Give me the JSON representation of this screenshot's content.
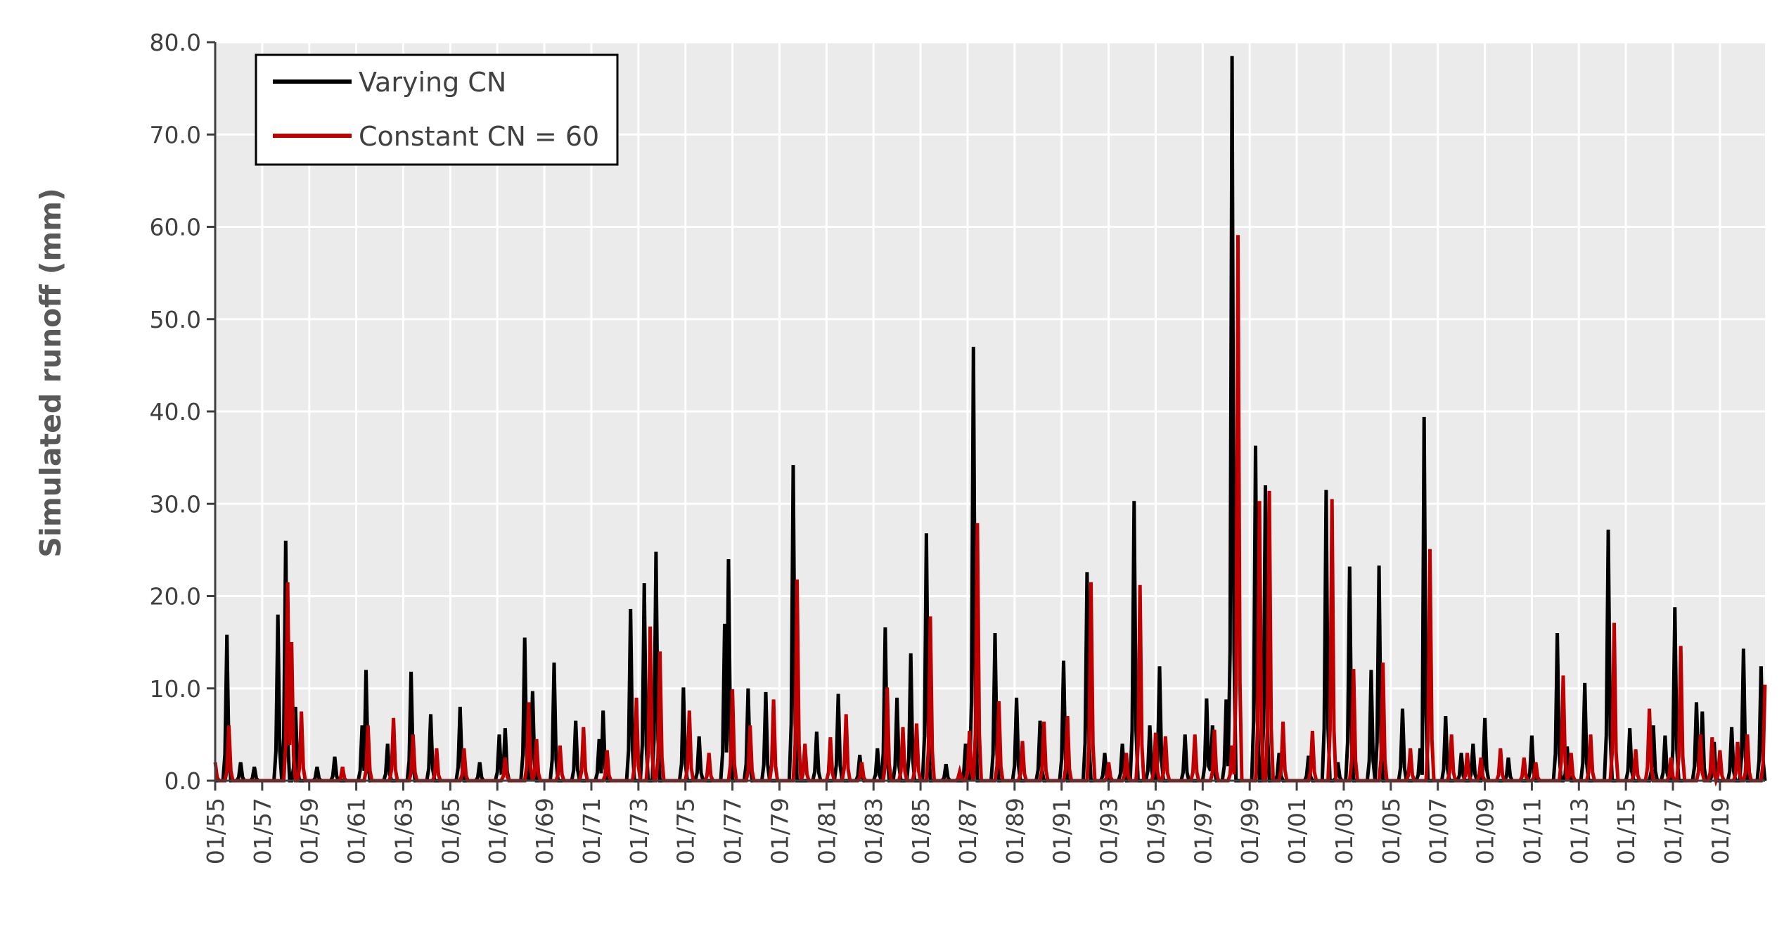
{
  "chart_data": {
    "type": "line",
    "title": "",
    "xlabel": "",
    "ylabel": "Simulated runoff (mm)",
    "ylim": [
      0,
      80
    ],
    "yticks": [
      "0.0",
      "10.0",
      "20.0",
      "30.0",
      "40.0",
      "50.0",
      "60.0",
      "70.0",
      "80.0"
    ],
    "xlim": [
      "1955-01",
      "2019-12"
    ],
    "xticks": [
      "01/55",
      "01/57",
      "01/59",
      "01/61",
      "01/63",
      "01/65",
      "01/67",
      "01/69",
      "01/71",
      "01/73",
      "01/75",
      "01/77",
      "01/79",
      "01/81",
      "01/83",
      "01/85",
      "01/87",
      "01/89",
      "01/91",
      "01/93",
      "01/95",
      "01/97",
      "01/99",
      "01/01",
      "01/03",
      "01/05",
      "01/07",
      "01/09",
      "01/11",
      "01/13",
      "01/15",
      "01/17",
      "01/19"
    ],
    "grid": true,
    "background": "#ebebeb",
    "legend_position": "top-left",
    "series": [
      {
        "name": "Varying CN",
        "color": "#000000",
        "peaks": [
          [
            "1955-07",
            15.8
          ],
          [
            "1956-02",
            2.0
          ],
          [
            "1956-09",
            1.5
          ],
          [
            "1957-09",
            18.0
          ],
          [
            "1958-01",
            26.0
          ],
          [
            "1958-06",
            8.0
          ],
          [
            "1959-05",
            1.5
          ],
          [
            "1960-02",
            2.6
          ],
          [
            "1961-04",
            6.0
          ],
          [
            "1961-06",
            12.0
          ],
          [
            "1962-05",
            4.0
          ],
          [
            "1963-05",
            11.8
          ],
          [
            "1964-03",
            7.2
          ],
          [
            "1965-06",
            8.0
          ],
          [
            "1966-04",
            2.0
          ],
          [
            "1967-02",
            5.0
          ],
          [
            "1967-05",
            5.7
          ],
          [
            "1968-03",
            15.5
          ],
          [
            "1968-07",
            9.7
          ],
          [
            "1969-06",
            12.8
          ],
          [
            "1970-05",
            6.5
          ],
          [
            "1971-05",
            4.5
          ],
          [
            "1971-07",
            7.6
          ],
          [
            "1972-09",
            18.6
          ],
          [
            "1973-04",
            21.4
          ],
          [
            "1973-10",
            24.8
          ],
          [
            "1974-12",
            10.1
          ],
          [
            "1975-08",
            4.8
          ],
          [
            "1976-09",
            17.0
          ],
          [
            "1976-11",
            24.0
          ],
          [
            "1977-09",
            10.0
          ],
          [
            "1978-06",
            9.6
          ],
          [
            "1979-08",
            34.2
          ],
          [
            "1980-08",
            5.3
          ],
          [
            "1981-07",
            9.4
          ],
          [
            "1982-06",
            2.8
          ],
          [
            "1983-03",
            3.5
          ],
          [
            "1983-07",
            16.6
          ],
          [
            "1984-01",
            9.0
          ],
          [
            "1984-08",
            13.8
          ],
          [
            "1985-04",
            26.8
          ],
          [
            "1986-02",
            1.8
          ],
          [
            "1986-12",
            4.0
          ],
          [
            "1987-04",
            47.0
          ],
          [
            "1988-03",
            16.0
          ],
          [
            "1989-02",
            9.0
          ],
          [
            "1990-02",
            6.5
          ],
          [
            "1991-02",
            13.0
          ],
          [
            "1992-02",
            22.6
          ],
          [
            "1992-11",
            3.0
          ],
          [
            "1993-08",
            4.0
          ],
          [
            "1994-02",
            30.3
          ],
          [
            "1994-10",
            6.0
          ],
          [
            "1995-03",
            12.4
          ],
          [
            "1996-04",
            5.0
          ],
          [
            "1997-03",
            8.9
          ],
          [
            "1997-06",
            6.0
          ],
          [
            "1998-01",
            8.8
          ],
          [
            "1998-04",
            78.5
          ],
          [
            "1999-04",
            36.3
          ],
          [
            "1999-09",
            32.0
          ],
          [
            "2000-04",
            3.0
          ],
          [
            "2001-07",
            2.7
          ],
          [
            "2002-04",
            31.5
          ],
          [
            "2002-10",
            2.0
          ],
          [
            "2003-04",
            23.2
          ],
          [
            "2004-03",
            12.0
          ],
          [
            "2004-07",
            23.3
          ],
          [
            "2005-07",
            7.8
          ],
          [
            "2006-04",
            3.5
          ],
          [
            "2006-06",
            39.4
          ],
          [
            "2007-05",
            7.0
          ],
          [
            "2008-01",
            3.0
          ],
          [
            "2008-07",
            4.0
          ],
          [
            "2009-01",
            6.8
          ],
          [
            "2010-01",
            2.5
          ],
          [
            "2011-01",
            4.9
          ],
          [
            "2012-02",
            16.0
          ],
          [
            "2012-07",
            3.7
          ],
          [
            "2013-04",
            10.6
          ],
          [
            "2014-04",
            27.2
          ],
          [
            "2015-03",
            5.7
          ],
          [
            "2016-03",
            6.0
          ],
          [
            "2016-09",
            4.9
          ],
          [
            "2017-02",
            18.8
          ],
          [
            "2018-01",
            8.5
          ],
          [
            "2018-04",
            7.5
          ],
          [
            "2018-10",
            4.2
          ],
          [
            "2019-07",
            5.8
          ],
          [
            "2020-01",
            14.3
          ],
          [
            "2020-10",
            12.4
          ]
        ]
      },
      {
        "name": "Constant CN = 60",
        "color": "#c00000",
        "peaks": [
          [
            "1955-01",
            2.0
          ],
          [
            "1955-08",
            6.0
          ],
          [
            "1958-02",
            21.5
          ],
          [
            "1958-04",
            15.0
          ],
          [
            "1958-09",
            7.5
          ],
          [
            "1960-06",
            1.5
          ],
          [
            "1961-07",
            6.0
          ],
          [
            "1962-08",
            6.8
          ],
          [
            "1963-06",
            5.0
          ],
          [
            "1964-06",
            3.5
          ],
          [
            "1965-08",
            3.5
          ],
          [
            "1967-05",
            2.5
          ],
          [
            "1968-05",
            8.5
          ],
          [
            "1968-09",
            4.5
          ],
          [
            "1969-09",
            3.8
          ],
          [
            "1970-09",
            5.8
          ],
          [
            "1971-09",
            3.3
          ],
          [
            "1972-12",
            9.0
          ],
          [
            "1973-07",
            16.7
          ],
          [
            "1973-12",
            14.0
          ],
          [
            "1975-03",
            7.6
          ],
          [
            "1976-01",
            3.0
          ],
          [
            "1977-01",
            9.9
          ],
          [
            "1977-10",
            6.0
          ],
          [
            "1978-10",
            8.8
          ],
          [
            "1979-10",
            21.8
          ],
          [
            "1980-02",
            4.0
          ],
          [
            "1981-03",
            4.7
          ],
          [
            "1981-11",
            7.2
          ],
          [
            "1982-07",
            2.0
          ],
          [
            "1983-08",
            10.1
          ],
          [
            "1984-04",
            5.8
          ],
          [
            "1984-11",
            6.2
          ],
          [
            "1985-06",
            17.8
          ],
          [
            "1986-09",
            1.0
          ],
          [
            "1987-02",
            5.4
          ],
          [
            "1987-06",
            27.9
          ],
          [
            "1988-05",
            8.6
          ],
          [
            "1989-05",
            4.3
          ],
          [
            "1990-04",
            6.4
          ],
          [
            "1991-04",
            7.0
          ],
          [
            "1992-04",
            21.5
          ],
          [
            "1993-01",
            2.0
          ],
          [
            "1993-10",
            3.0
          ],
          [
            "1994-05",
            21.2
          ],
          [
            "1995-01",
            5.2
          ],
          [
            "1995-06",
            4.8
          ],
          [
            "1996-09",
            5.0
          ],
          [
            "1997-07",
            5.5
          ],
          [
            "1998-04",
            3.8
          ],
          [
            "1998-07",
            59.1
          ],
          [
            "1999-06",
            30.3
          ],
          [
            "1999-11",
            31.4
          ],
          [
            "2000-06",
            6.4
          ],
          [
            "2001-09",
            5.4
          ],
          [
            "2002-07",
            30.5
          ],
          [
            "2003-06",
            12.1
          ],
          [
            "2004-09",
            12.8
          ],
          [
            "2005-11",
            3.5
          ],
          [
            "2006-09",
            25.1
          ],
          [
            "2007-08",
            5.0
          ],
          [
            "2008-04",
            3.0
          ],
          [
            "2008-11",
            2.5
          ],
          [
            "2009-09",
            3.5
          ],
          [
            "2010-09",
            2.5
          ],
          [
            "2011-03",
            2.0
          ],
          [
            "2012-05",
            11.4
          ],
          [
            "2012-09",
            3.0
          ],
          [
            "2013-07",
            5.0
          ],
          [
            "2014-07",
            17.1
          ],
          [
            "2015-06",
            3.4
          ],
          [
            "2016-01",
            7.8
          ],
          [
            "2016-12",
            2.5
          ],
          [
            "2017-05",
            14.6
          ],
          [
            "2018-03",
            5.0
          ],
          [
            "2018-09",
            4.7
          ],
          [
            "2019-01",
            3.3
          ],
          [
            "2019-10",
            4.2
          ],
          [
            "2020-03",
            5.0
          ],
          [
            "2020-12",
            10.4
          ]
        ]
      }
    ]
  }
}
